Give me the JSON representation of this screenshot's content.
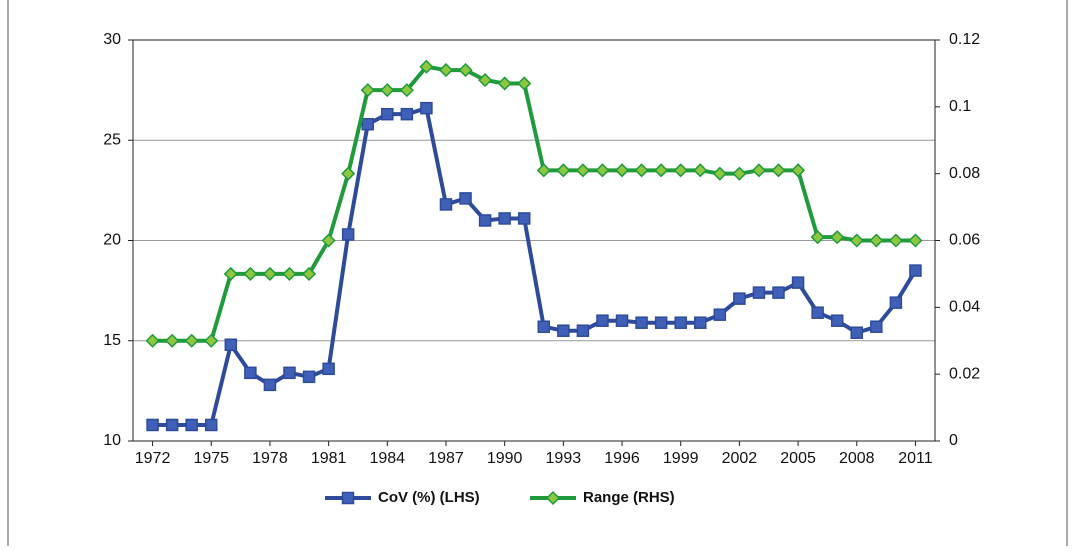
{
  "chart_data": {
    "type": "line",
    "x": [
      1972,
      1973,
      1974,
      1975,
      1976,
      1977,
      1978,
      1979,
      1980,
      1981,
      1982,
      1983,
      1984,
      1985,
      1986,
      1987,
      1988,
      1989,
      1990,
      1991,
      1992,
      1993,
      1994,
      1995,
      1996,
      1997,
      1998,
      1999,
      2000,
      2001,
      2002,
      2003,
      2004,
      2005,
      2006,
      2007,
      2008,
      2009,
      2010,
      2011
    ],
    "xlim": [
      1971,
      2012
    ],
    "xticks": [
      1972,
      1975,
      1978,
      1981,
      1984,
      1987,
      1990,
      1993,
      1996,
      1999,
      2002,
      2005,
      2008,
      2011
    ],
    "ylim": [
      10,
      30
    ],
    "yticks": [
      10,
      15,
      20,
      25,
      30
    ],
    "y2lim": [
      0,
      0.12
    ],
    "y2ticks": [
      0,
      0.02,
      0.04,
      0.06,
      0.08,
      0.1,
      0.12
    ],
    "grid": true,
    "legend": "bottom",
    "series": [
      {
        "name": "CoV (%) (LHS)",
        "color": "#2e4b9b",
        "marker": "square",
        "values": [
          10.8,
          10.8,
          10.8,
          10.8,
          14.8,
          13.4,
          12.8,
          13.4,
          13.2,
          13.6,
          20.3,
          25.8,
          26.3,
          26.3,
          26.6,
          21.8,
          22.1,
          21.0,
          21.1,
          21.1,
          15.7,
          15.5,
          15.5,
          16.0,
          16.0,
          15.9,
          15.9,
          15.9,
          15.9,
          16.3,
          17.1,
          17.4,
          17.4,
          17.9,
          16.4,
          16.0,
          15.4,
          15.7,
          16.9,
          18.5
        ]
      },
      {
        "name": "Range (RHS)",
        "color": "#1f9a3c",
        "marker": "diamond",
        "axis": "y2",
        "values": [
          0.03,
          0.03,
          0.03,
          0.03,
          0.05,
          0.05,
          0.05,
          0.05,
          0.05,
          0.06,
          0.08,
          0.105,
          0.105,
          0.105,
          0.112,
          0.111,
          0.111,
          0.108,
          0.107,
          0.107,
          0.081,
          0.081,
          0.081,
          0.081,
          0.081,
          0.081,
          0.081,
          0.081,
          0.081,
          0.08,
          0.08,
          0.081,
          0.081,
          0.081,
          0.061,
          0.061,
          0.06,
          0.06,
          0.06,
          0.06
        ]
      }
    ]
  }
}
